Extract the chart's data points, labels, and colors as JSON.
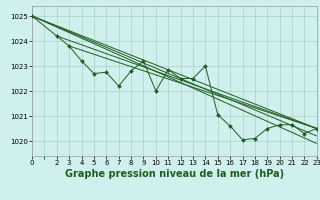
{
  "pressure_data": [
    [
      0,
      1025.0
    ],
    [
      2,
      1024.2
    ],
    [
      3,
      1023.8
    ],
    [
      4,
      1023.2
    ],
    [
      5,
      1022.7
    ],
    [
      6,
      1022.75
    ],
    [
      7,
      1022.2
    ],
    [
      8,
      1022.8
    ],
    [
      9,
      1023.2
    ],
    [
      10,
      1022.0
    ],
    [
      11,
      1022.85
    ],
    [
      12,
      1022.5
    ],
    [
      13,
      1022.5
    ],
    [
      14,
      1023.0
    ],
    [
      15,
      1021.05
    ],
    [
      16,
      1020.6
    ],
    [
      17,
      1020.05
    ],
    [
      18,
      1020.1
    ],
    [
      19,
      1020.5
    ],
    [
      20,
      1020.65
    ],
    [
      21,
      1020.65
    ],
    [
      22,
      1020.3
    ],
    [
      23,
      1020.5
    ]
  ],
  "trend_lines": [
    [
      [
        0,
        1025.0
      ],
      [
        23,
        1020.5
      ]
    ],
    [
      [
        0,
        1025.0
      ],
      [
        23,
        1020.2
      ]
    ],
    [
      [
        0,
        1025.0
      ],
      [
        23,
        1019.9
      ]
    ],
    [
      [
        2,
        1024.2
      ],
      [
        23,
        1020.5
      ]
    ],
    [
      [
        3,
        1023.8
      ],
      [
        23,
        1020.5
      ]
    ]
  ],
  "line_color": "#1f5c1f",
  "bg_color": "#cff0ec",
  "grid_color": "#aacfcc",
  "xlabel": "Graphe pression niveau de la mer (hPa)",
  "ylim": [
    1019.4,
    1025.4
  ],
  "xlim": [
    0,
    23
  ],
  "yticks": [
    1020,
    1021,
    1022,
    1023,
    1024,
    1025
  ],
  "xtick_labels": [
    "0",
    "",
    "2",
    "3",
    "4",
    "5",
    "6",
    "7",
    "8",
    "9",
    "10",
    "11",
    "12",
    "13",
    "14",
    "15",
    "16",
    "17",
    "18",
    "19",
    "20",
    "21",
    "22",
    "23"
  ],
  "xlabel_fontsize": 7,
  "tick_fontsize": 5
}
